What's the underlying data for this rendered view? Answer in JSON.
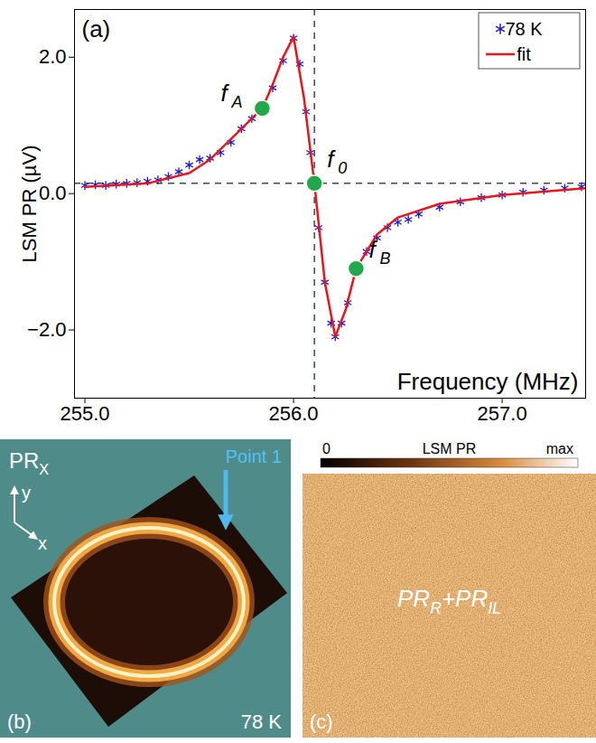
{
  "chart_data": {
    "type": "scatter",
    "panel": "(a)",
    "x_label": "Frequency (MHz)",
    "y_label": "LSM PR (µV)",
    "xlim": [
      254.95,
      257.4
    ],
    "xticks": [
      255,
      256,
      257
    ],
    "ylim": [
      -3,
      2.7
    ],
    "yticks": [
      -2,
      0,
      2
    ],
    "legend": "top-right",
    "series": [
      {
        "name": "78 K",
        "type": "scatter",
        "marker": "asterisk",
        "color": "#1a1adb",
        "x": [
          255.0,
          255.05,
          255.1,
          255.15,
          255.2,
          255.25,
          255.3,
          255.35,
          255.4,
          255.45,
          255.5,
          255.55,
          255.6,
          255.65,
          255.7,
          255.75,
          255.8,
          255.85,
          255.9,
          255.95,
          256.0,
          256.03,
          256.06,
          256.08,
          256.1,
          256.12,
          256.15,
          256.18,
          256.2,
          256.23,
          256.26,
          256.3,
          256.35,
          256.4,
          256.45,
          256.5,
          256.55,
          256.6,
          256.7,
          256.8,
          256.9,
          257.0,
          257.1,
          257.2,
          257.3,
          257.38
        ],
        "values": [
          0.12,
          0.13,
          0.12,
          0.14,
          0.15,
          0.16,
          0.18,
          0.2,
          0.25,
          0.32,
          0.42,
          0.5,
          0.52,
          0.6,
          0.75,
          0.95,
          1.1,
          1.25,
          1.55,
          1.95,
          2.28,
          1.9,
          1.2,
          0.6,
          0.15,
          -0.5,
          -1.3,
          -1.9,
          -2.1,
          -1.9,
          -1.6,
          -1.1,
          -0.85,
          -0.65,
          -0.5,
          -0.42,
          -0.38,
          -0.3,
          -0.2,
          -0.12,
          -0.06,
          -0.02,
          0.02,
          0.05,
          0.08,
          0.1
        ]
      },
      {
        "name": "fit",
        "type": "line",
        "line_style": "solid",
        "color": "#e8151b",
        "x": [
          255.0,
          255.3,
          255.5,
          255.6,
          255.7,
          255.8,
          255.85,
          255.9,
          255.95,
          256.0,
          256.05,
          256.1,
          256.15,
          256.2,
          256.25,
          256.3,
          256.4,
          256.5,
          256.7,
          257.0,
          257.4
        ],
        "values": [
          0.1,
          0.15,
          0.3,
          0.5,
          0.8,
          1.1,
          1.25,
          1.6,
          2.0,
          2.3,
          1.4,
          0.15,
          -1.3,
          -2.1,
          -1.7,
          -1.1,
          -0.6,
          -0.35,
          -0.15,
          -0.02,
          0.08
        ]
      }
    ],
    "points": [
      {
        "name": "f",
        "sub": "A",
        "x": 255.85,
        "y": 1.25,
        "color": "#22a84a"
      },
      {
        "name": "f",
        "sub": "0",
        "x": 256.1,
        "y": 0.15,
        "color": "#22a84a"
      },
      {
        "name": "f",
        "sub": "B",
        "x": 256.3,
        "y": -1.1,
        "color": "#22a84a"
      }
    ],
    "reference_lines": {
      "x": 256.1,
      "y": 0.15,
      "line_style": "dashed"
    }
  },
  "images": [
    {
      "panel": "(b)",
      "title": {
        "text": "PR",
        "sub": "X"
      },
      "axes": [
        "y",
        "x"
      ],
      "marker_label": "Point 1",
      "temperature": "78 K"
    },
    {
      "panel": "(c)",
      "colorbar": {
        "title": "LSM PR",
        "labels": [
          "0",
          "max"
        ]
      },
      "label": [
        {
          "text": "PR",
          "sub": "R"
        },
        {
          "text": "+"
        },
        {
          "text": "PR",
          "sub": "IL"
        }
      ]
    }
  ]
}
